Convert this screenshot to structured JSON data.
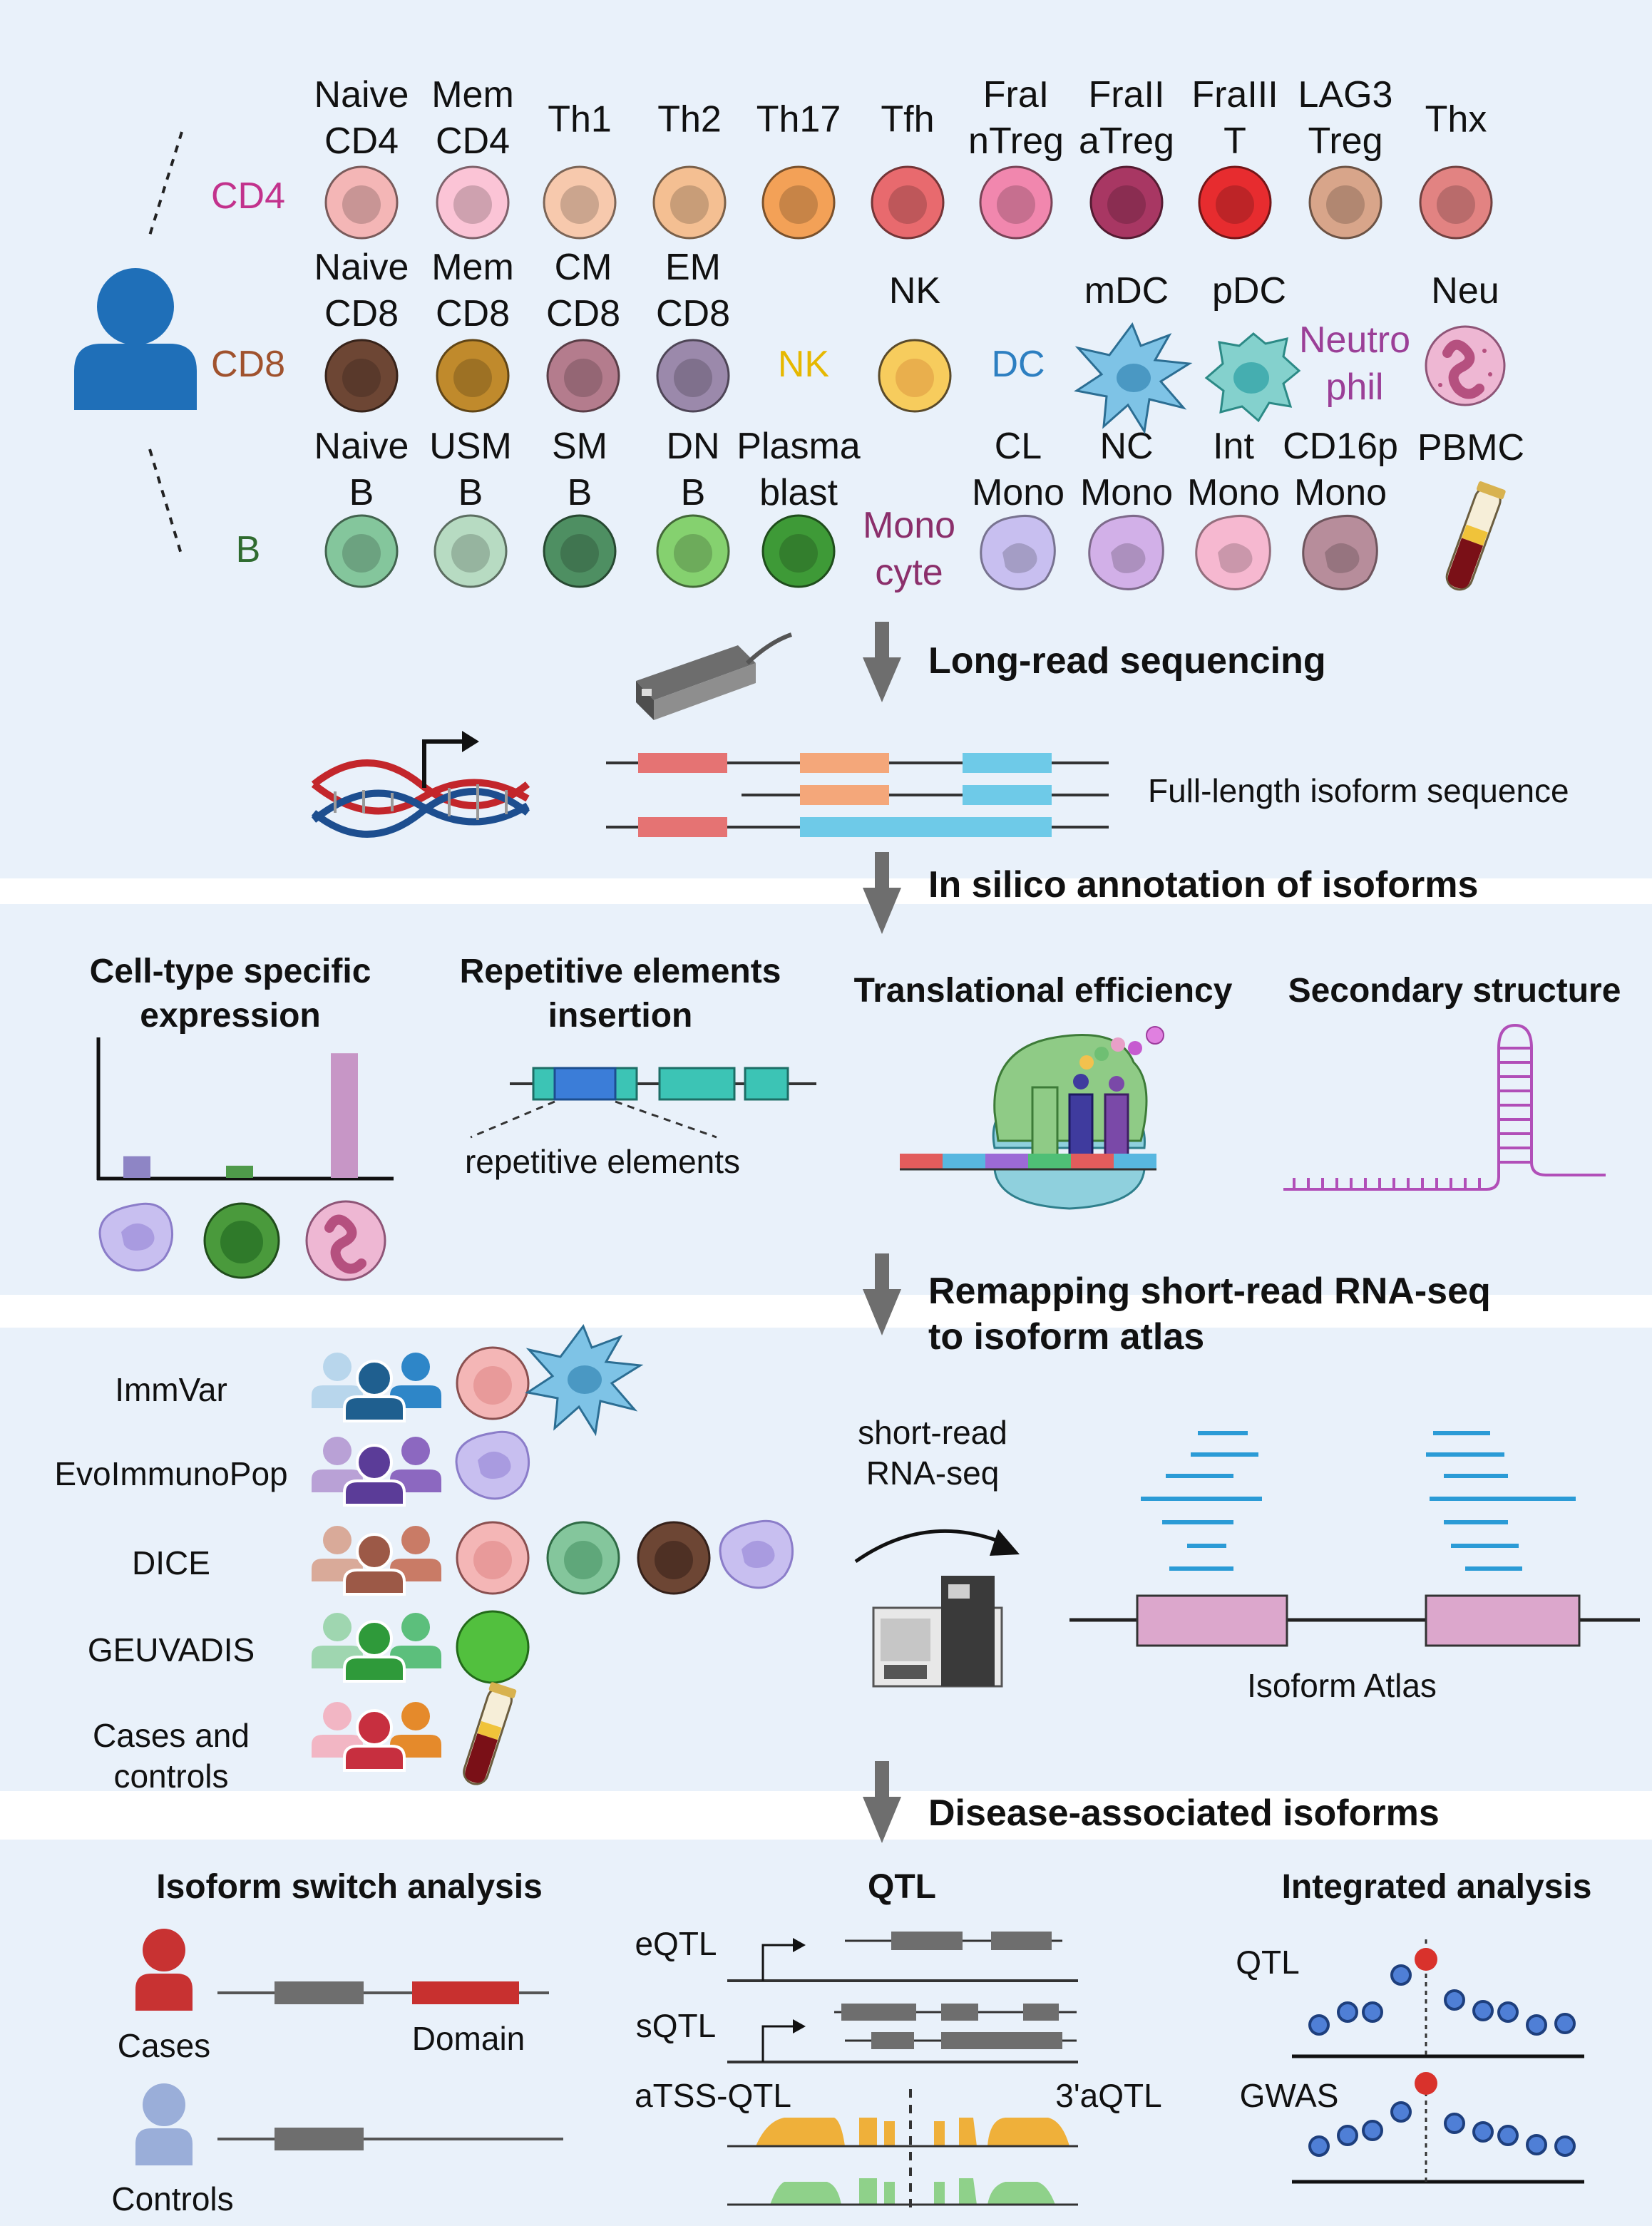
{
  "cell_panel": {
    "group_labels": {
      "cd4": "CD4",
      "cd8": "CD8",
      "b": "B"
    },
    "group_colors": {
      "cd4": "#c2328c",
      "cd8": "#a0522d",
      "b": "#2f6b2f",
      "nk": "#e6b800",
      "dc": "#2d7fc1",
      "neutrophil": "#9b3f97",
      "monocyte": "#8b2f6b"
    },
    "cd4_cells": [
      {
        "l1": "Naive",
        "l2": "CD4",
        "color": "#f4b6b6"
      },
      {
        "l1": "Mem",
        "l2": "CD4",
        "color": "#fbc4d6"
      },
      {
        "l1": "Th1",
        "l2": "",
        "color": "#f7c9ad"
      },
      {
        "l1": "Th2",
        "l2": "",
        "color": "#f4bf92"
      },
      {
        "l1": "Th17",
        "l2": "",
        "color": "#f3a157"
      },
      {
        "l1": "Tfh",
        "l2": "",
        "color": "#e86a6e"
      },
      {
        "l1": "FraI",
        "l2": "nTreg",
        "color": "#f187ae"
      },
      {
        "l1": "FraII",
        "l2": "aTreg",
        "color": "#a83763"
      },
      {
        "l1": "FraIII",
        "l2": "T",
        "color": "#e72c2f"
      },
      {
        "l1": "LAG3",
        "l2": "Treg",
        "color": "#d8a58a"
      },
      {
        "l1": "Thx",
        "l2": "",
        "color": "#e28382"
      }
    ],
    "cd8_cells": [
      {
        "l1": "Naive",
        "l2": "CD8",
        "color": "#6d4634"
      },
      {
        "l1": "Mem",
        "l2": "CD8",
        "color": "#c08a2c"
      },
      {
        "l1": "CM",
        "l2": "CD8",
        "color": "#b47c8d"
      },
      {
        "l1": "EM",
        "l2": "CD8",
        "color": "#9b89ab"
      }
    ],
    "nk": {
      "group": "NK",
      "label": "NK",
      "color": "#f7cc5d"
    },
    "dc": {
      "group": "DC",
      "mdc": "mDC",
      "pdc": "pDC",
      "mdc_color": "#7ec3e6",
      "pdc_color": "#84d1cd"
    },
    "neutrophil": {
      "group_l1": "Neutro",
      "group_l2": "phil",
      "label": "Neu",
      "color": "#eeb7d3"
    },
    "b_cells": [
      {
        "l1": "Naive",
        "l2": "B",
        "color": "#84c69c"
      },
      {
        "l1": "USM",
        "l2": "B",
        "color": "#b7dbc2"
      },
      {
        "l1": "SM",
        "l2": "B",
        "color": "#4e8f62"
      },
      {
        "l1": "DN",
        "l2": "B",
        "color": "#85d16f"
      },
      {
        "l1": "Plasma",
        "l2": "blast",
        "color": "#3e9a37"
      }
    ],
    "monocyte": {
      "group_l1": "Mono",
      "group_l2": "cyte"
    },
    "mono_cells": [
      {
        "l1": "CL",
        "l2": "Mono",
        "color": "#c8bff0"
      },
      {
        "l1": "NC",
        "l2": "Mono",
        "color": "#d2b0e8"
      },
      {
        "l1": "Int",
        "l2": "Mono",
        "color": "#f6b8d0"
      },
      {
        "l1": "CD16p",
        "l2": "Mono",
        "color": "#b78d9b"
      }
    ],
    "pbmc": {
      "label": "PBMC"
    }
  },
  "steps": {
    "step1": "Long-read sequencing",
    "step2": "In silico annotation of isoforms",
    "step3_l1": "Remapping short-read RNA-seq",
    "step3_l2": "to isoform atlas",
    "step4": "Disease-associated isoforms"
  },
  "sequencing": {
    "isoform_label": "Full-length isoform sequence"
  },
  "annotation": {
    "cell_type_l1": "Cell-type specific",
    "cell_type_l2": "expression",
    "bar_chart": {
      "categories": [
        "Monocyte",
        "B",
        "Neutrophil"
      ],
      "values": [
        0.16,
        0.09,
        0.92
      ],
      "colors": [
        "#8e85c5",
        "#4f9a4a",
        "#c796c6"
      ]
    },
    "repetitive_l1": "Repetitive elements",
    "repetitive_l2": "insertion",
    "repetitive_label": "repetitive elements",
    "translational": "Translational efficiency",
    "secondary": "Secondary structure"
  },
  "remapping": {
    "datasets": [
      {
        "name": "ImmVar"
      },
      {
        "name": "EvoImmunoPop"
      },
      {
        "name": "DICE"
      },
      {
        "name": "GEUVADIS"
      },
      {
        "name": "Cases and",
        "name2": "controls"
      }
    ],
    "short_read_l1": "short-read",
    "short_read_l2": "RNA-seq",
    "atlas_label": "Isoform Atlas"
  },
  "disease": {
    "switch_title": "Isoform switch analysis",
    "cases": "Cases",
    "domain": "Domain",
    "controls": "Controls",
    "qtl_title": "QTL",
    "eqtl": "eQTL",
    "sqtl": "sQTL",
    "atss": "aTSS-QTL",
    "aqtl": "3'aQTL",
    "integrated_title": "Integrated analysis",
    "qtl_label": "QTL",
    "gwas_label": "GWAS"
  }
}
